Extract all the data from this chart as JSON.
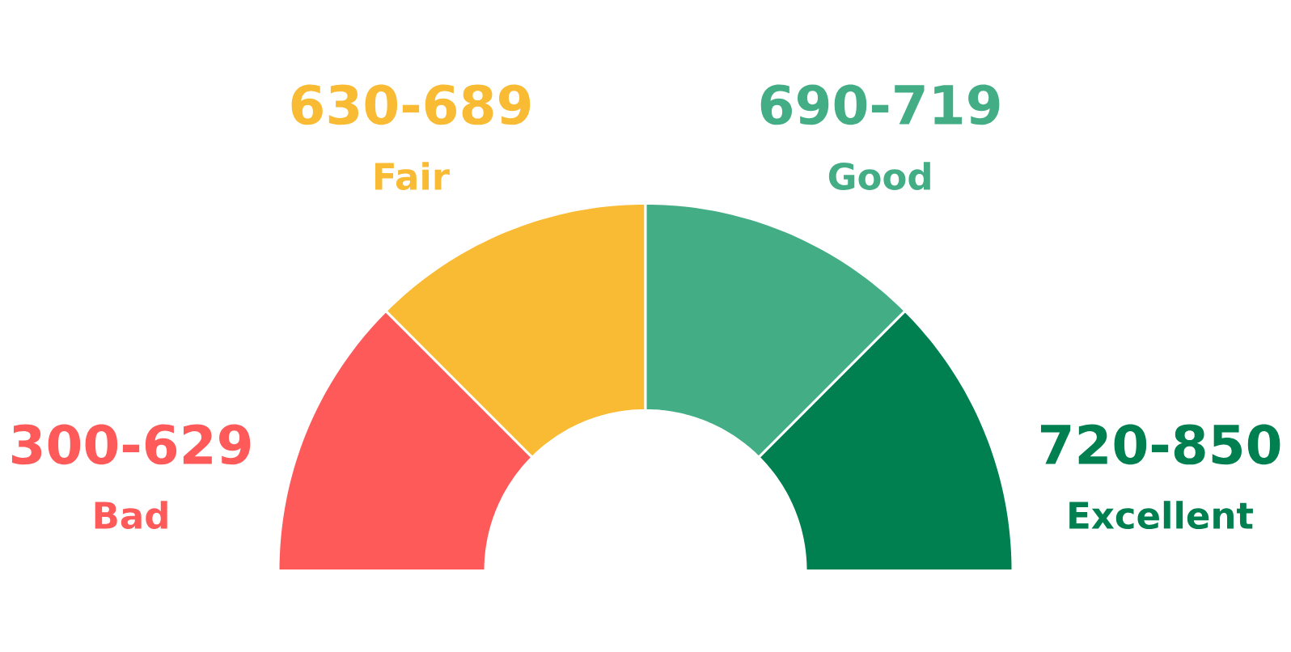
{
  "chart_data": {
    "type": "donut",
    "categories": [
      "Bad",
      "Fair",
      "Good",
      "Excellent"
    ],
    "values": [
      25,
      25,
      25,
      25
    ],
    "colors": [
      "#ff5a5a",
      "#f8bb33",
      "#43ae86",
      "#007f50"
    ],
    "annotations": [
      "300-629",
      "630-689",
      "690-719",
      "720-850"
    ]
  }
}
